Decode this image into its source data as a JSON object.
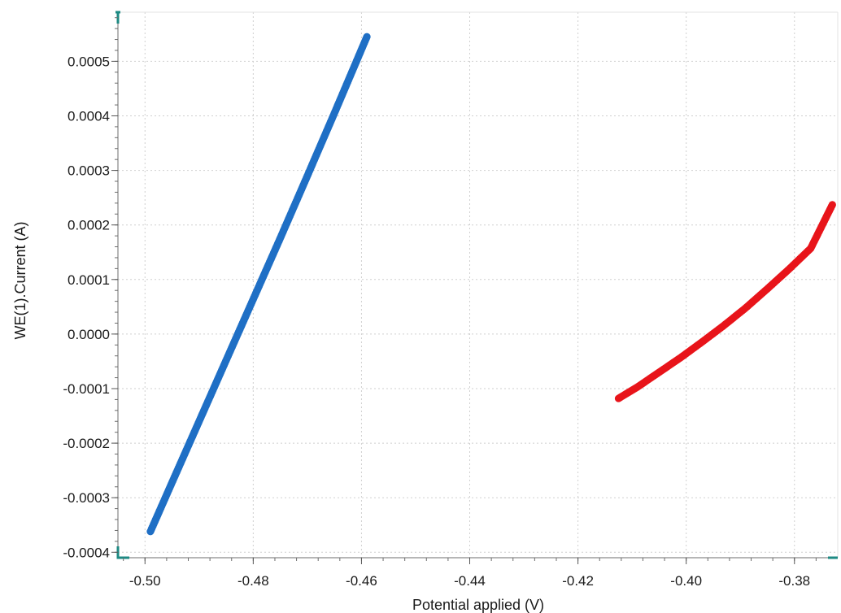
{
  "chart_data": {
    "type": "scatter",
    "xlabel": "Potential applied (V)",
    "ylabel": "WE(1).Current (A)",
    "xlim": [
      -0.505,
      -0.372
    ],
    "ylim": [
      -0.00041,
      0.00059
    ],
    "x_ticks": [
      -0.5,
      -0.48,
      -0.46,
      -0.44,
      -0.42,
      -0.4,
      -0.38
    ],
    "x_tick_labels": [
      "-0.50",
      "-0.48",
      "-0.46",
      "-0.44",
      "-0.42",
      "-0.40",
      "-0.38"
    ],
    "y_ticks": [
      -0.0004,
      -0.0003,
      -0.0002,
      -0.0001,
      0.0,
      0.0001,
      0.0002,
      0.0003,
      0.0004,
      0.0005
    ],
    "y_tick_labels": [
      "-0.0004",
      "-0.0003",
      "-0.0002",
      "-0.0001",
      "0.0000",
      "0.0001",
      "0.0002",
      "0.0003",
      "0.0004",
      "0.0005"
    ],
    "grid": true,
    "series": [
      {
        "color": "#1f6fc5",
        "x": [
          -0.499,
          -0.495,
          -0.49,
          -0.485,
          -0.48,
          -0.475,
          -0.47,
          -0.465,
          -0.459
        ],
        "y": [
          -0.000362,
          -0.000272,
          -0.00016,
          -4.8e-05,
          6.4e-05,
          0.000176,
          0.00029,
          0.000405,
          0.000545
        ]
      },
      {
        "color": "#e8141a",
        "x": [
          -0.4125,
          -0.409,
          -0.405,
          -0.401,
          -0.397,
          -0.393,
          -0.389,
          -0.385,
          -0.381,
          -0.377,
          -0.373
        ],
        "y": [
          -0.000118,
          -9.7e-05,
          -7e-05,
          -4.3e-05,
          -1.4e-05,
          1.6e-05,
          4.8e-05,
          8.3e-05,
          0.000119,
          0.000157,
          0.000237
        ]
      }
    ]
  }
}
